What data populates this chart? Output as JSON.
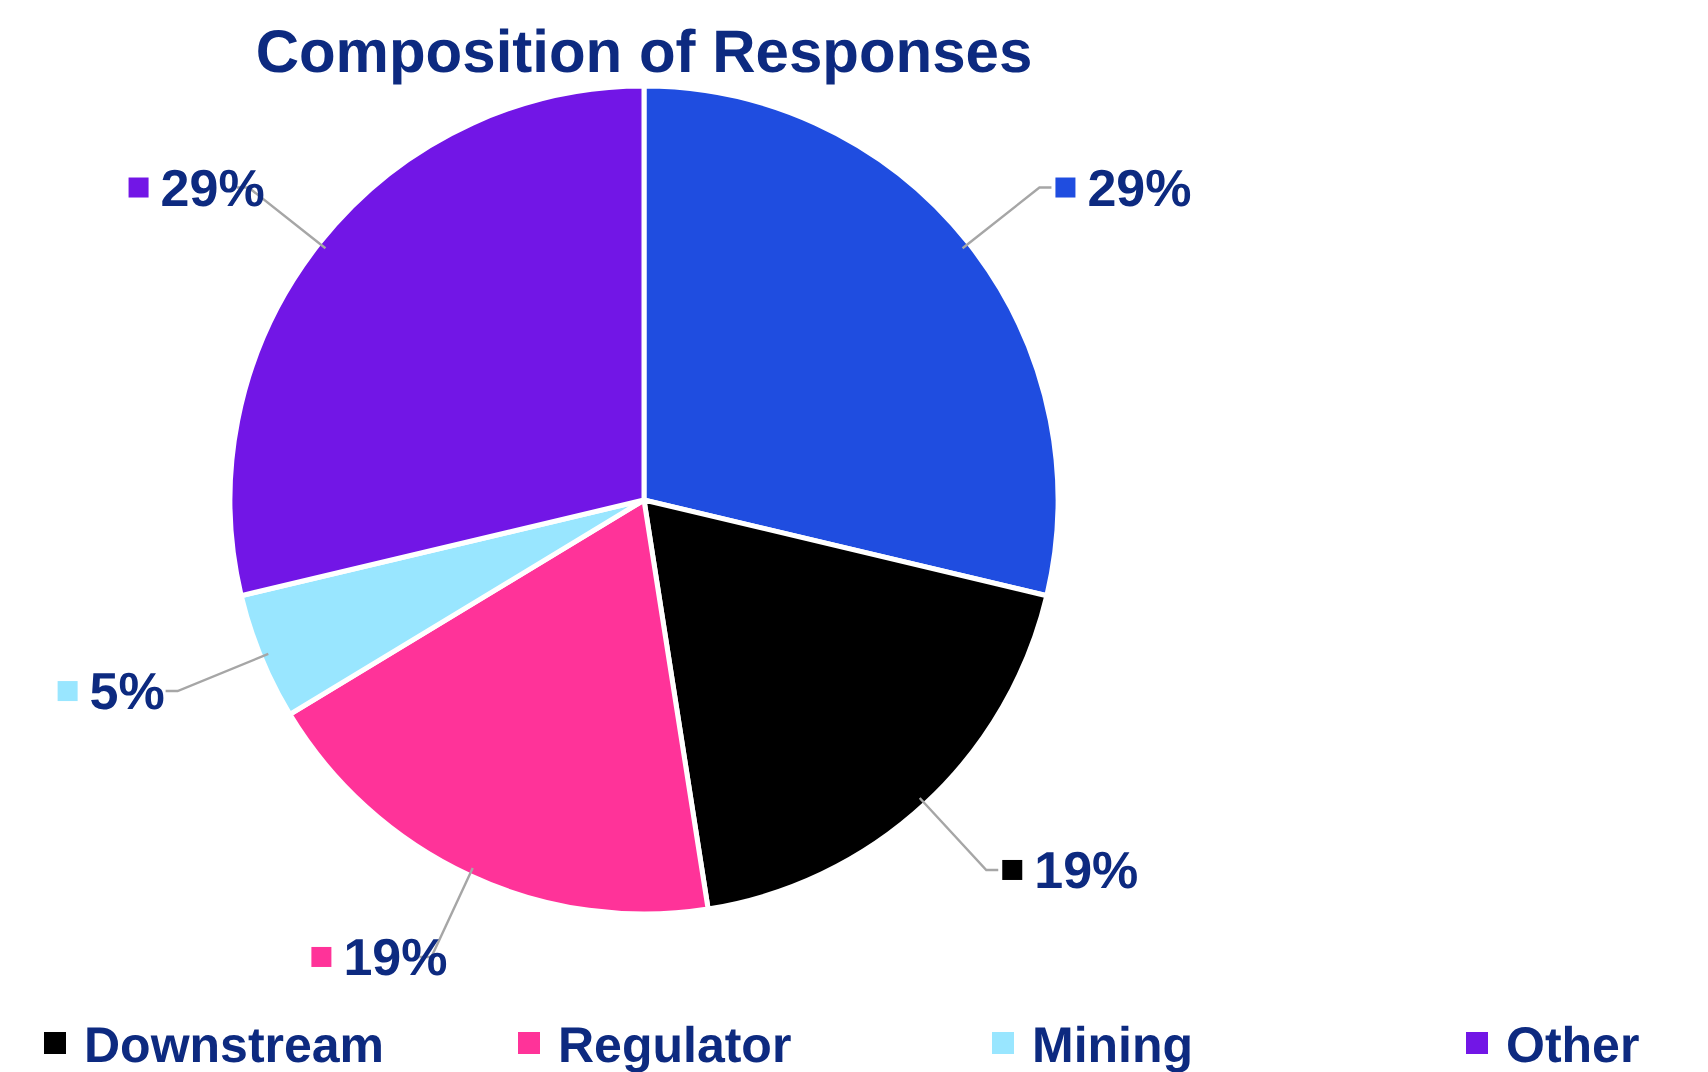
{
  "chart_data": {
    "type": "pie",
    "title": "Composition of Responses",
    "categories": [
      null,
      "Downstream",
      "Regulator",
      "Mining",
      "Other"
    ],
    "values": [
      29,
      19,
      19,
      5,
      29
    ],
    "value_labels": [
      "29%",
      "19%",
      "19%",
      "5%",
      "29%"
    ],
    "colors": [
      "#1f4de0",
      "#000000",
      "#ff3399",
      "#99e6ff",
      "#7216e6"
    ],
    "legend": "bottom"
  }
}
